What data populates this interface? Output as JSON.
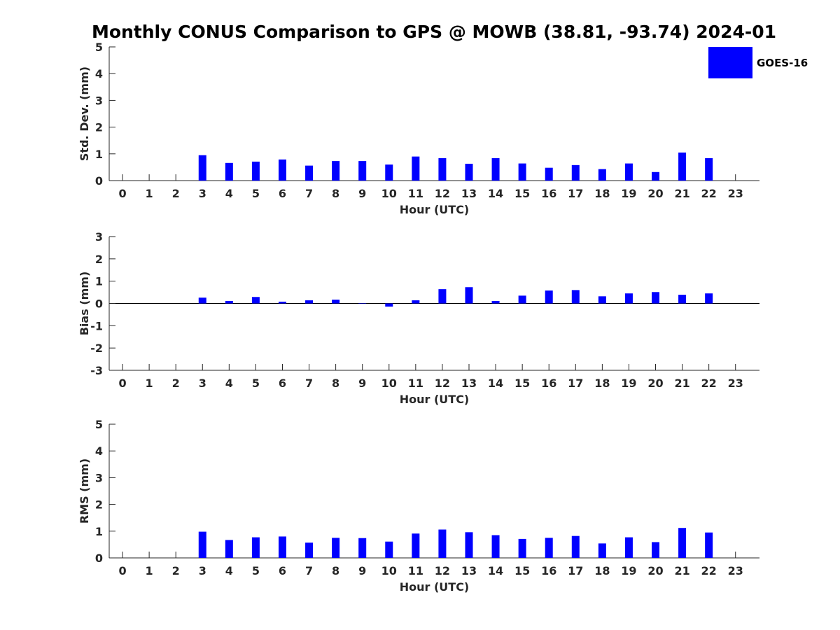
{
  "title": "Monthly CONUS Comparison to GPS @ MOWB (38.81, -93.74) 2024-01",
  "colors": {
    "bar": "#0000ff",
    "axis": "#262626"
  },
  "legend": {
    "label": "GOES-16",
    "placement": "top-right"
  },
  "chart_data": [
    {
      "type": "bar",
      "id": "stddev",
      "xlabel": "Hour (UTC)",
      "ylabel": "Std. Dev. (mm)",
      "ylim": [
        0,
        5
      ],
      "yticks": [
        0,
        1,
        2,
        3,
        4,
        5
      ],
      "x": [
        0,
        1,
        2,
        3,
        4,
        5,
        6,
        7,
        8,
        9,
        10,
        11,
        12,
        13,
        14,
        15,
        16,
        17,
        18,
        19,
        20,
        21,
        22,
        23
      ],
      "series": [
        {
          "name": "GOES-16",
          "values": [
            null,
            null,
            null,
            0.95,
            0.66,
            0.71,
            0.79,
            0.56,
            0.73,
            0.73,
            0.6,
            0.9,
            0.84,
            0.63,
            0.84,
            0.64,
            0.48,
            0.58,
            0.43,
            0.64,
            0.32,
            1.05,
            0.84,
            null
          ]
        }
      ]
    },
    {
      "type": "bar",
      "id": "bias",
      "xlabel": "Hour (UTC)",
      "ylabel": "Bias (mm)",
      "ylim": [
        -3,
        3
      ],
      "yticks": [
        -3,
        -2,
        -1,
        0,
        1,
        2,
        3
      ],
      "x": [
        0,
        1,
        2,
        3,
        4,
        5,
        6,
        7,
        8,
        9,
        10,
        11,
        12,
        13,
        14,
        15,
        16,
        17,
        18,
        19,
        20,
        21,
        22,
        23
      ],
      "series": [
        {
          "name": "GOES-16",
          "values": [
            null,
            null,
            null,
            0.26,
            0.11,
            0.29,
            0.08,
            0.14,
            0.17,
            0.0,
            -0.14,
            0.14,
            0.64,
            0.73,
            0.11,
            0.35,
            0.58,
            0.6,
            0.32,
            0.45,
            0.51,
            0.39,
            0.45,
            null
          ]
        }
      ]
    },
    {
      "type": "bar",
      "id": "rms",
      "xlabel": "Hour (UTC)",
      "ylabel": "RMS (mm)",
      "ylim": [
        0,
        5
      ],
      "yticks": [
        0,
        1,
        2,
        3,
        4,
        5
      ],
      "x": [
        0,
        1,
        2,
        3,
        4,
        5,
        6,
        7,
        8,
        9,
        10,
        11,
        12,
        13,
        14,
        15,
        16,
        17,
        18,
        19,
        20,
        21,
        22,
        23
      ],
      "series": [
        {
          "name": "GOES-16",
          "values": [
            null,
            null,
            null,
            0.98,
            0.67,
            0.77,
            0.8,
            0.57,
            0.75,
            0.74,
            0.61,
            0.91,
            1.06,
            0.96,
            0.85,
            0.71,
            0.75,
            0.82,
            0.54,
            0.77,
            0.59,
            1.12,
            0.95,
            null
          ]
        }
      ]
    }
  ]
}
